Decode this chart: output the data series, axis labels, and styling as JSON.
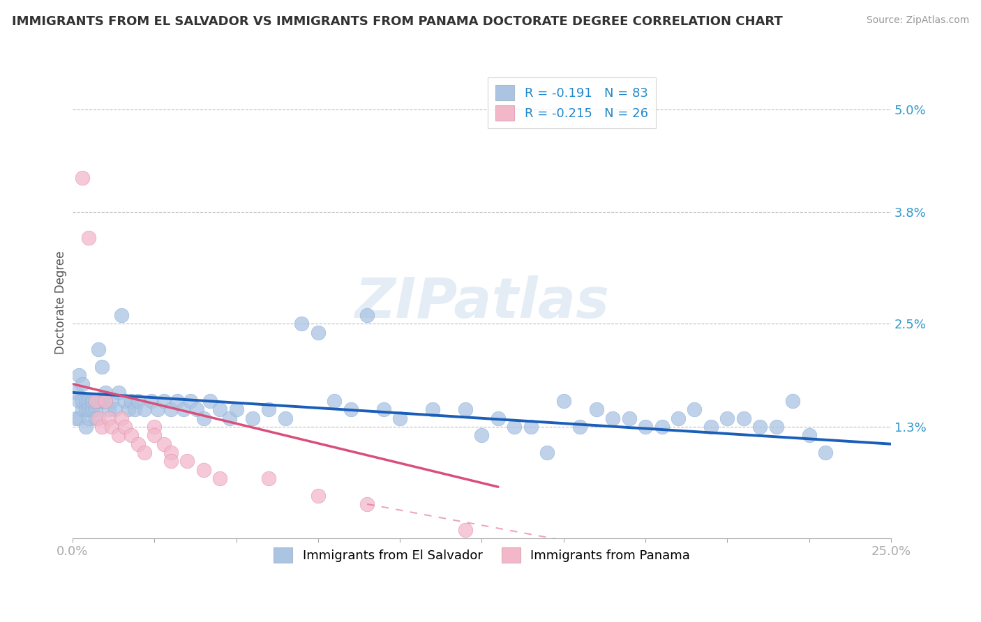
{
  "title": "IMMIGRANTS FROM EL SALVADOR VS IMMIGRANTS FROM PANAMA DOCTORATE DEGREE CORRELATION CHART",
  "source": "Source: ZipAtlas.com",
  "ylabel": "Doctorate Degree",
  "xlim": [
    0.0,
    0.25
  ],
  "ylim": [
    0.0,
    0.055
  ],
  "ytick_vals": [
    0.013,
    0.025,
    0.038,
    0.05
  ],
  "ytick_labels": [
    "1.3%",
    "2.5%",
    "3.8%",
    "5.0%"
  ],
  "xtick_vals": [
    0.0,
    0.25
  ],
  "xtick_labels": [
    "0.0%",
    "25.0%"
  ],
  "legend_1": "R = -0.191   N = 83",
  "legend_2": "R = -0.215   N = 26",
  "color_es": "#aac4e2",
  "color_pan": "#f2b8ca",
  "line_color_es": "#1a5eb8",
  "line_color_pan": "#d94f7a",
  "watermark": "ZIPatlas",
  "es_x": [
    0.001,
    0.001,
    0.002,
    0.002,
    0.002,
    0.003,
    0.003,
    0.003,
    0.004,
    0.004,
    0.004,
    0.005,
    0.005,
    0.005,
    0.006,
    0.006,
    0.007,
    0.007,
    0.007,
    0.008,
    0.008,
    0.009,
    0.009,
    0.01,
    0.01,
    0.011,
    0.012,
    0.013,
    0.014,
    0.015,
    0.016,
    0.017,
    0.018,
    0.019,
    0.02,
    0.022,
    0.024,
    0.026,
    0.028,
    0.03,
    0.032,
    0.034,
    0.036,
    0.038,
    0.04,
    0.042,
    0.045,
    0.048,
    0.05,
    0.055,
    0.06,
    0.065,
    0.07,
    0.075,
    0.08,
    0.085,
    0.09,
    0.095,
    0.1,
    0.11,
    0.12,
    0.13,
    0.14,
    0.15,
    0.16,
    0.17,
    0.18,
    0.19,
    0.2,
    0.21,
    0.22,
    0.185,
    0.195,
    0.205,
    0.215,
    0.225,
    0.23,
    0.175,
    0.165,
    0.155,
    0.145,
    0.135,
    0.125
  ],
  "es_y": [
    0.017,
    0.014,
    0.016,
    0.014,
    0.019,
    0.015,
    0.016,
    0.018,
    0.015,
    0.016,
    0.013,
    0.016,
    0.014,
    0.015,
    0.015,
    0.016,
    0.015,
    0.016,
    0.014,
    0.016,
    0.022,
    0.016,
    0.02,
    0.016,
    0.017,
    0.015,
    0.016,
    0.015,
    0.017,
    0.026,
    0.016,
    0.015,
    0.016,
    0.015,
    0.016,
    0.015,
    0.016,
    0.015,
    0.016,
    0.015,
    0.016,
    0.015,
    0.016,
    0.015,
    0.014,
    0.016,
    0.015,
    0.014,
    0.015,
    0.014,
    0.015,
    0.014,
    0.025,
    0.024,
    0.016,
    0.015,
    0.026,
    0.015,
    0.014,
    0.015,
    0.015,
    0.014,
    0.013,
    0.016,
    0.015,
    0.014,
    0.013,
    0.015,
    0.014,
    0.013,
    0.016,
    0.014,
    0.013,
    0.014,
    0.013,
    0.012,
    0.01,
    0.013,
    0.014,
    0.013,
    0.01,
    0.013,
    0.012
  ],
  "pan_x": [
    0.003,
    0.005,
    0.007,
    0.008,
    0.009,
    0.01,
    0.011,
    0.012,
    0.014,
    0.015,
    0.016,
    0.018,
    0.02,
    0.022,
    0.025,
    0.025,
    0.028,
    0.03,
    0.03,
    0.035,
    0.04,
    0.045,
    0.06,
    0.075,
    0.09,
    0.12
  ],
  "pan_y": [
    0.042,
    0.035,
    0.016,
    0.014,
    0.013,
    0.016,
    0.014,
    0.013,
    0.012,
    0.014,
    0.013,
    0.012,
    0.011,
    0.01,
    0.013,
    0.012,
    0.011,
    0.01,
    0.009,
    0.009,
    0.008,
    0.007,
    0.007,
    0.005,
    0.004,
    0.001
  ],
  "es_trend_x": [
    0.0,
    0.25
  ],
  "es_trend_y": [
    0.017,
    0.011
  ],
  "pan_trend_x": [
    0.0,
    0.13
  ],
  "pan_trend_y": [
    0.018,
    0.006
  ]
}
